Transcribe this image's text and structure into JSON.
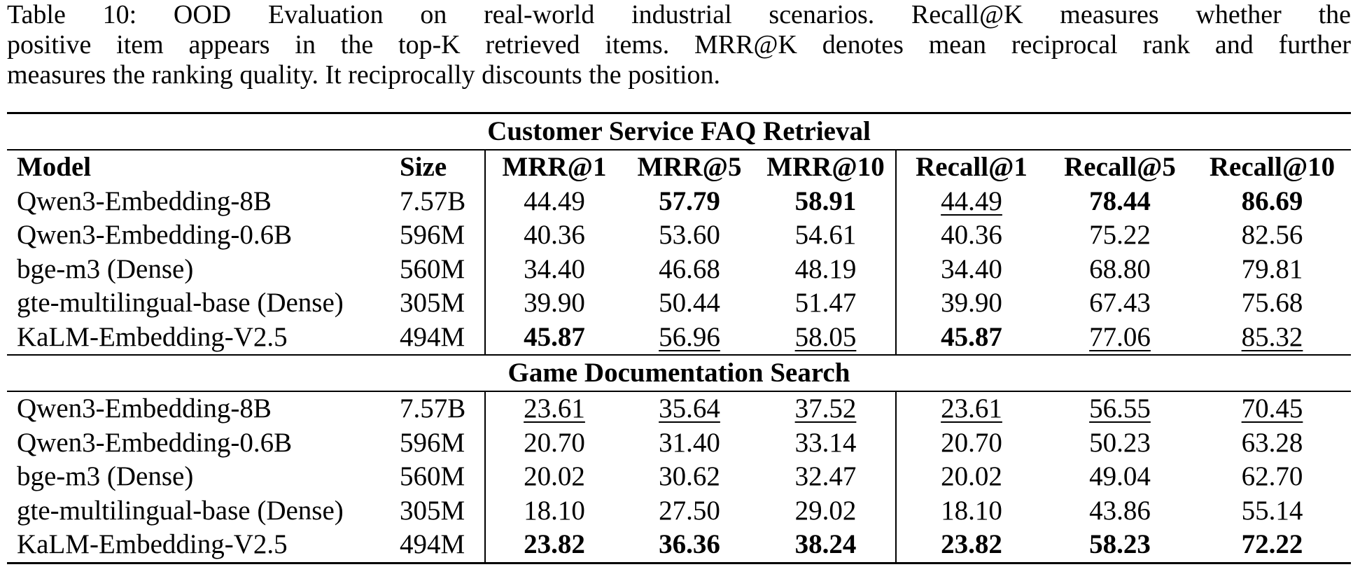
{
  "caption": {
    "lines": [
      "Table 10: OOD Evaluation on real-world industrial scenarios. Recall@K measures whether the",
      "positive item appears in the top-K retrieved items. MRR@K denotes mean reciprocal rank and further",
      "measures the ranking quality. It reciprocally discounts the position."
    ]
  },
  "table": {
    "headers": [
      "Model",
      "Size",
      "MRR@1",
      "MRR@5",
      "MRR@10",
      "Recall@1",
      "Recall@5",
      "Recall@10"
    ],
    "sections": [
      {
        "title": "Customer Service FAQ Retrieval",
        "rows": [
          {
            "model": "Qwen3-Embedding-8B",
            "size": "7.57B",
            "values": [
              "44.49",
              "57.79",
              "58.91",
              "44.49",
              "78.44",
              "86.69"
            ],
            "bold": [
              false,
              true,
              true,
              false,
              true,
              true
            ],
            "underline": [
              false,
              false,
              false,
              true,
              false,
              false
            ]
          },
          {
            "model": "Qwen3-Embedding-0.6B",
            "size": "596M",
            "values": [
              "40.36",
              "53.60",
              "54.61",
              "40.36",
              "75.22",
              "82.56"
            ],
            "bold": [
              false,
              false,
              false,
              false,
              false,
              false
            ],
            "underline": [
              false,
              false,
              false,
              false,
              false,
              false
            ]
          },
          {
            "model": "bge-m3 (Dense)",
            "size": "560M",
            "values": [
              "34.40",
              "46.68",
              "48.19",
              "34.40",
              "68.80",
              "79.81"
            ],
            "bold": [
              false,
              false,
              false,
              false,
              false,
              false
            ],
            "underline": [
              false,
              false,
              false,
              false,
              false,
              false
            ]
          },
          {
            "model": "gte-multilingual-base (Dense)",
            "size": "305M",
            "values": [
              "39.90",
              "50.44",
              "51.47",
              "39.90",
              "67.43",
              "75.68"
            ],
            "bold": [
              false,
              false,
              false,
              false,
              false,
              false
            ],
            "underline": [
              false,
              false,
              false,
              false,
              false,
              false
            ]
          },
          {
            "model": "KaLM-Embedding-V2.5",
            "size": "494M",
            "values": [
              "45.87",
              "56.96",
              "58.05",
              "45.87",
              "77.06",
              "85.32"
            ],
            "bold": [
              true,
              false,
              false,
              true,
              false,
              false
            ],
            "underline": [
              false,
              true,
              true,
              false,
              true,
              true
            ]
          }
        ]
      },
      {
        "title": "Game Documentation Search",
        "rows": [
          {
            "model": "Qwen3-Embedding-8B",
            "size": "7.57B",
            "values": [
              "23.61",
              "35.64",
              "37.52",
              "23.61",
              "56.55",
              "70.45"
            ],
            "bold": [
              false,
              false,
              false,
              false,
              false,
              false
            ],
            "underline": [
              true,
              true,
              true,
              true,
              true,
              true
            ]
          },
          {
            "model": "Qwen3-Embedding-0.6B",
            "size": "596M",
            "values": [
              "20.70",
              "31.40",
              "33.14",
              "20.70",
              "50.23",
              "63.28"
            ],
            "bold": [
              false,
              false,
              false,
              false,
              false,
              false
            ],
            "underline": [
              false,
              false,
              false,
              false,
              false,
              false
            ]
          },
          {
            "model": "bge-m3 (Dense)",
            "size": "560M",
            "values": [
              "20.02",
              "30.62",
              "32.47",
              "20.02",
              "49.04",
              "62.70"
            ],
            "bold": [
              false,
              false,
              false,
              false,
              false,
              false
            ],
            "underline": [
              false,
              false,
              false,
              false,
              false,
              false
            ]
          },
          {
            "model": "gte-multilingual-base (Dense)",
            "size": "305M",
            "values": [
              "18.10",
              "27.50",
              "29.02",
              "18.10",
              "43.86",
              "55.14"
            ],
            "bold": [
              false,
              false,
              false,
              false,
              false,
              false
            ],
            "underline": [
              false,
              false,
              false,
              false,
              false,
              false
            ]
          },
          {
            "model": "KaLM-Embedding-V2.5",
            "size": "494M",
            "values": [
              "23.82",
              "36.36",
              "38.24",
              "23.82",
              "58.23",
              "72.22"
            ],
            "bold": [
              true,
              true,
              true,
              true,
              true,
              true
            ],
            "underline": [
              false,
              false,
              false,
              false,
              false,
              false
            ]
          }
        ]
      }
    ]
  }
}
